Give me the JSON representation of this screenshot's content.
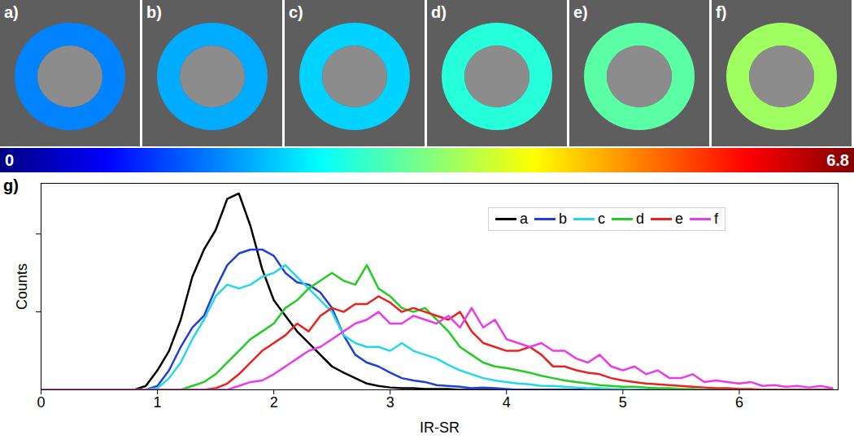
{
  "panels": [
    "a)",
    "b)",
    "c)",
    "d)",
    "e)",
    "f)"
  ],
  "colorbar": {
    "range": [
      0,
      6.8
    ],
    "ticks": [
      0,
      6.8
    ]
  },
  "chart_data": {
    "type": "line",
    "panel_label": "g)",
    "x_label": "IR-SR",
    "y_label": "Counts",
    "x": [
      0,
      0.1,
      0.2,
      0.3,
      0.4,
      0.5,
      0.6,
      0.7,
      0.8,
      0.9,
      1,
      1.1,
      1.2,
      1.3,
      1.4,
      1.5,
      1.6,
      1.7,
      1.8,
      1.9,
      2,
      2.1,
      2.2,
      2.3,
      2.4,
      2.5,
      2.6,
      2.7,
      2.8,
      2.9,
      3,
      3.1,
      3.2,
      3.3,
      3.4,
      3.5,
      3.6,
      3.7,
      3.8,
      3.9,
      4,
      4.1,
      4.2,
      4.3,
      4.4,
      4.5,
      4.6,
      4.7,
      4.8,
      4.9,
      5,
      5.1,
      5.2,
      5.3,
      5.4,
      5.5,
      5.6,
      5.7,
      5.8,
      5.9,
      6,
      6.1,
      6.2,
      6.3,
      6.4,
      6.5,
      6.6,
      6.7,
      6.8
    ],
    "series": [
      {
        "name": "a",
        "color": "#000000",
        "values": [
          0,
          0,
          0,
          0,
          0,
          0,
          0,
          0,
          0,
          0.05,
          0.25,
          0.5,
          0.9,
          1.45,
          1.8,
          2.05,
          2.45,
          2.52,
          2.1,
          1.55,
          1.15,
          0.95,
          0.75,
          0.6,
          0.45,
          0.3,
          0.22,
          0.15,
          0.08,
          0.05,
          0.03,
          0.02,
          0.02,
          0.01,
          0.01,
          0.01,
          0,
          0,
          0,
          0,
          0,
          0,
          0,
          0,
          0,
          0,
          0,
          0,
          0,
          0,
          0,
          0,
          0,
          0,
          0,
          0,
          0,
          0,
          0,
          0,
          0,
          0,
          0,
          0,
          0,
          0,
          0,
          0,
          0
        ]
      },
      {
        "name": "b",
        "color": "#1f3fd8",
        "values": [
          0,
          0,
          0,
          0,
          0,
          0,
          0,
          0,
          0,
          0,
          0.05,
          0.25,
          0.55,
          0.8,
          0.95,
          1.3,
          1.6,
          1.75,
          1.8,
          1.8,
          1.72,
          1.5,
          1.38,
          1.35,
          1.25,
          1.05,
          0.7,
          0.45,
          0.35,
          0.3,
          0.22,
          0.15,
          0.12,
          0.1,
          0.06,
          0.05,
          0.04,
          0.02,
          0.03,
          0.02,
          0.01,
          0,
          0,
          0,
          0,
          0,
          0,
          0,
          0,
          0,
          0,
          0,
          0,
          0,
          0,
          0,
          0,
          0,
          0,
          0,
          0,
          0,
          0,
          0,
          0,
          0,
          0,
          0,
          0
        ]
      },
      {
        "name": "c",
        "color": "#22d8e8",
        "values": [
          0,
          0,
          0,
          0,
          0,
          0,
          0,
          0,
          0,
          0,
          0.02,
          0.15,
          0.35,
          0.65,
          0.9,
          1.2,
          1.35,
          1.3,
          1.35,
          1.45,
          1.5,
          1.6,
          1.45,
          1.3,
          1.15,
          1.0,
          0.7,
          0.6,
          0.55,
          0.55,
          0.5,
          0.6,
          0.5,
          0.45,
          0.4,
          0.32,
          0.25,
          0.2,
          0.15,
          0.12,
          0.1,
          0.08,
          0.07,
          0.05,
          0.05,
          0.04,
          0.03,
          0.02,
          0.02,
          0.01,
          0.01,
          0,
          0,
          0,
          0,
          0,
          0,
          0,
          0,
          0,
          0,
          0,
          0,
          0,
          0,
          0,
          0,
          0,
          0
        ]
      },
      {
        "name": "d",
        "color": "#22cc22",
        "values": [
          0,
          0,
          0,
          0,
          0,
          0,
          0,
          0,
          0,
          0,
          0,
          0,
          0,
          0.05,
          0.1,
          0.2,
          0.35,
          0.5,
          0.65,
          0.75,
          0.85,
          1.05,
          1.15,
          1.3,
          1.4,
          1.5,
          1.4,
          1.35,
          1.6,
          1.3,
          1.2,
          1.05,
          1.0,
          1.05,
          0.9,
          0.75,
          0.55,
          0.45,
          0.35,
          0.3,
          0.28,
          0.25,
          0.22,
          0.18,
          0.15,
          0.12,
          0.1,
          0.08,
          0.06,
          0.05,
          0.04,
          0.04,
          0.03,
          0.02,
          0.02,
          0.01,
          0.01,
          0,
          0,
          0,
          0,
          0,
          0,
          0,
          0,
          0,
          0,
          0,
          0
        ]
      },
      {
        "name": "e",
        "color": "#e8221e",
        "values": [
          0,
          0,
          0,
          0,
          0,
          0,
          0,
          0,
          0,
          0,
          0,
          0,
          0,
          0,
          0,
          0.02,
          0.08,
          0.2,
          0.35,
          0.5,
          0.6,
          0.7,
          0.85,
          0.75,
          0.95,
          1.05,
          1.0,
          1.1,
          1.1,
          1.2,
          1.12,
          1.0,
          1.05,
          1.0,
          0.95,
          0.9,
          1.0,
          0.75,
          0.6,
          0.55,
          0.5,
          0.5,
          0.55,
          0.45,
          0.3,
          0.3,
          0.25,
          0.22,
          0.2,
          0.15,
          0.12,
          0.1,
          0.08,
          0.07,
          0.06,
          0.05,
          0.04,
          0.03,
          0.02,
          0.02,
          0.01,
          0.01,
          0,
          0,
          0,
          0,
          0,
          0,
          0
        ]
      },
      {
        "name": "f",
        "color": "#e83ce8",
        "values": [
          0,
          0,
          0,
          0,
          0,
          0,
          0,
          0,
          0,
          0,
          0,
          0,
          0,
          0,
          0,
          0,
          0,
          0.05,
          0.1,
          0.12,
          0.2,
          0.3,
          0.4,
          0.5,
          0.55,
          0.65,
          0.75,
          0.85,
          0.9,
          1.0,
          0.85,
          0.85,
          0.95,
          0.9,
          0.85,
          0.95,
          0.8,
          1.05,
          0.8,
          0.9,
          0.65,
          0.6,
          0.55,
          0.6,
          0.5,
          0.5,
          0.4,
          0.35,
          0.45,
          0.3,
          0.25,
          0.3,
          0.2,
          0.25,
          0.15,
          0.15,
          0.2,
          0.1,
          0.12,
          0.1,
          0.08,
          0.1,
          0.05,
          0.06,
          0.04,
          0.05,
          0.03,
          0.05,
          0.02
        ]
      }
    ],
    "xlim": [
      0,
      6.85
    ],
    "xticks": [
      0,
      1,
      2,
      3,
      4,
      5,
      6
    ],
    "ylim": [
      0,
      2.65
    ],
    "yticks": [
      1,
      2
    ],
    "tick_labels": "x",
    "legend": "top-right"
  }
}
